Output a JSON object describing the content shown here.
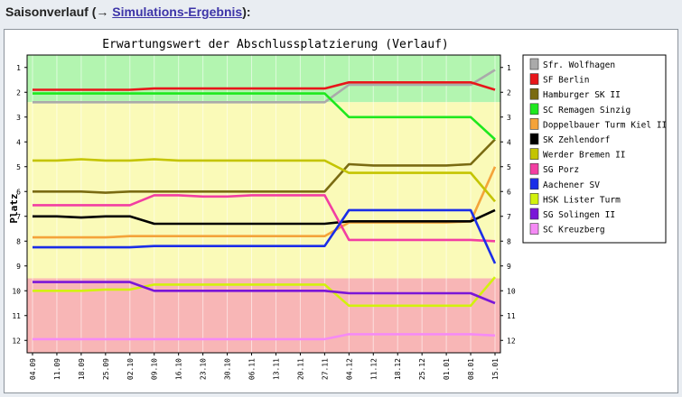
{
  "heading": {
    "prefix": "Saisonverlauf (→ ",
    "link": "Simulations-Ergebnis",
    "suffix": "):"
  },
  "chart_data": {
    "type": "line",
    "title": "Erwartungswert der Abschlussplatzierung (Verlauf)",
    "ylabel": "Platz",
    "xlabel": "",
    "categories": [
      "04.09",
      "11.09",
      "18.09",
      "25.09",
      "02.10",
      "09.10",
      "16.10",
      "23.10",
      "30.10",
      "06.11",
      "13.11",
      "20.11",
      "27.11",
      "04.12",
      "11.12",
      "18.12",
      "25.12",
      "01.01",
      "08.01",
      "15.01"
    ],
    "ylim": [
      0.5,
      12.5
    ],
    "y_inverted": true,
    "yticks": [
      1,
      2,
      3,
      4,
      5,
      6,
      7,
      8,
      9,
      10,
      11,
      12
    ],
    "legend_placement": "right",
    "bands": [
      {
        "from": 0.5,
        "to": 2.4,
        "color": "#b3f5b0"
      },
      {
        "from": 2.4,
        "to": 9.5,
        "color": "#fafab8"
      },
      {
        "from": 9.5,
        "to": 12.5,
        "color": "#f8b6b6"
      }
    ],
    "series": [
      {
        "name": "Sfr. Wolfhagen",
        "color": "#aaaaaa",
        "values": [
          2.4,
          2.4,
          2.4,
          2.4,
          2.4,
          2.4,
          2.4,
          2.4,
          2.4,
          2.4,
          2.4,
          2.4,
          2.4,
          1.7,
          1.7,
          1.7,
          1.7,
          1.7,
          1.7,
          1.1
        ]
      },
      {
        "name": "SF Berlin",
        "color": "#e8161a",
        "values": [
          1.9,
          1.9,
          1.9,
          1.9,
          1.9,
          1.85,
          1.85,
          1.85,
          1.85,
          1.85,
          1.85,
          1.85,
          1.85,
          1.6,
          1.6,
          1.6,
          1.6,
          1.6,
          1.6,
          1.9
        ]
      },
      {
        "name": "Hamburger SK II",
        "color": "#7a6b12",
        "values": [
          6.0,
          6.0,
          6.0,
          6.05,
          6.0,
          6.0,
          6.0,
          6.0,
          6.0,
          6.0,
          6.0,
          6.0,
          6.0,
          4.9,
          4.95,
          4.95,
          4.95,
          4.95,
          4.9,
          3.9
        ]
      },
      {
        "name": "SC Remagen Sinzig",
        "color": "#1ee81e",
        "values": [
          2.05,
          2.05,
          2.05,
          2.05,
          2.05,
          2.05,
          2.05,
          2.05,
          2.05,
          2.05,
          2.05,
          2.05,
          2.05,
          3.0,
          3.0,
          3.0,
          3.0,
          3.0,
          3.0,
          3.9
        ]
      },
      {
        "name": "Doppelbauer Turm Kiel II",
        "color": "#f4a33a",
        "values": [
          7.85,
          7.85,
          7.85,
          7.85,
          7.8,
          7.8,
          7.8,
          7.8,
          7.8,
          7.8,
          7.8,
          7.8,
          7.8,
          7.25,
          7.25,
          7.25,
          7.25,
          7.25,
          7.2,
          5.0
        ]
      },
      {
        "name": "SK Zehlendorf",
        "color": "#000000",
        "values": [
          7.0,
          7.0,
          7.05,
          7.0,
          7.0,
          7.3,
          7.3,
          7.3,
          7.3,
          7.3,
          7.3,
          7.3,
          7.3,
          7.2,
          7.2,
          7.2,
          7.2,
          7.2,
          7.2,
          6.75
        ]
      },
      {
        "name": "Werder Bremen II",
        "color": "#c4c400",
        "values": [
          4.75,
          4.75,
          4.7,
          4.75,
          4.75,
          4.7,
          4.75,
          4.75,
          4.75,
          4.75,
          4.75,
          4.75,
          4.75,
          5.25,
          5.25,
          5.25,
          5.25,
          5.25,
          5.25,
          6.4
        ]
      },
      {
        "name": "SG Porz",
        "color": "#f23ea2",
        "values": [
          6.55,
          6.55,
          6.55,
          6.55,
          6.55,
          6.15,
          6.15,
          6.2,
          6.2,
          6.15,
          6.15,
          6.15,
          6.15,
          7.95,
          7.95,
          7.95,
          7.95,
          7.95,
          7.95,
          8.0
        ]
      },
      {
        "name": "Aachener SV",
        "color": "#1a2de8",
        "values": [
          8.25,
          8.25,
          8.25,
          8.25,
          8.25,
          8.2,
          8.2,
          8.2,
          8.2,
          8.2,
          8.2,
          8.2,
          8.2,
          6.75,
          6.75,
          6.75,
          6.75,
          6.75,
          6.75,
          8.9
        ]
      },
      {
        "name": "HSK Lister Turm",
        "color": "#d2f20c",
        "values": [
          10.0,
          10.0,
          10.0,
          9.95,
          9.95,
          9.75,
          9.75,
          9.75,
          9.75,
          9.75,
          9.75,
          9.75,
          9.75,
          10.6,
          10.6,
          10.6,
          10.6,
          10.6,
          10.6,
          9.45
        ]
      },
      {
        "name": "SG Solingen II",
        "color": "#7a16d8",
        "values": [
          9.65,
          9.65,
          9.65,
          9.65,
          9.65,
          10.0,
          10.0,
          10.0,
          10.0,
          10.0,
          10.0,
          10.0,
          10.0,
          10.1,
          10.1,
          10.1,
          10.1,
          10.1,
          10.1,
          10.5
        ]
      },
      {
        "name": "SC Kreuzberg",
        "color": "#f58af5",
        "values": [
          11.95,
          11.95,
          11.95,
          11.95,
          11.95,
          11.95,
          11.95,
          11.95,
          11.95,
          11.95,
          11.95,
          11.95,
          11.95,
          11.75,
          11.75,
          11.75,
          11.75,
          11.75,
          11.75,
          11.8
        ]
      }
    ]
  }
}
